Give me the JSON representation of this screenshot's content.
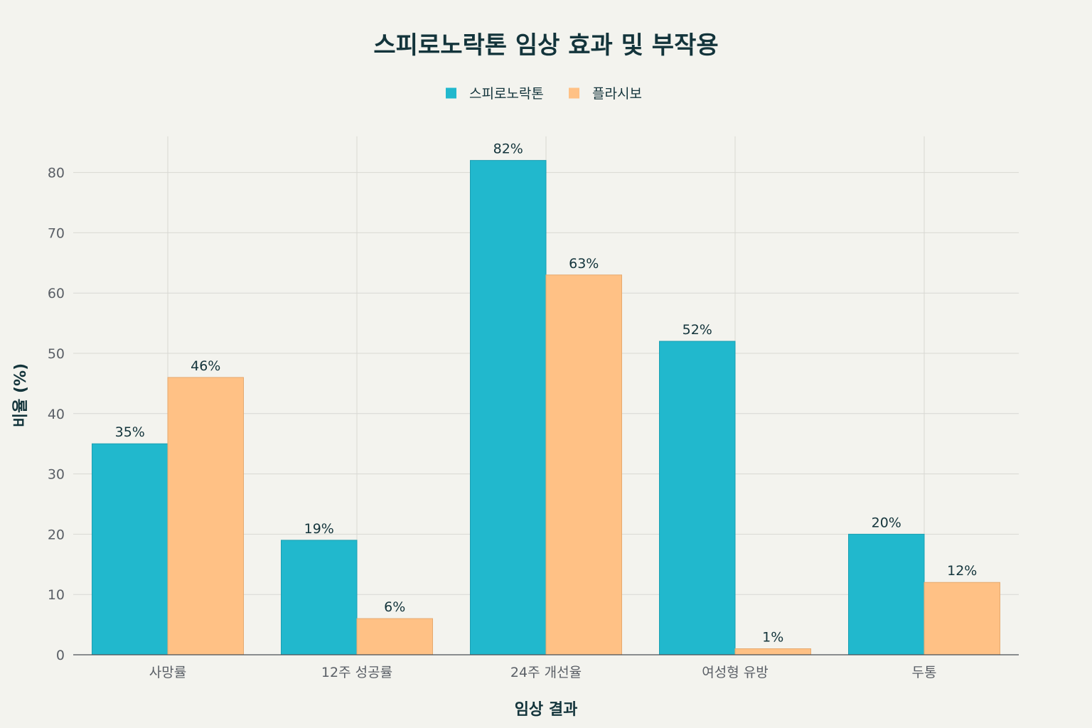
{
  "chart_data": {
    "type": "bar",
    "title": "스피로노락톤 임상 효과 및 부작용",
    "xlabel": "임상 결과",
    "ylabel": "비율 (%)",
    "categories": [
      "사망률",
      "12주 성공률",
      "24주 개선율",
      "여성형 유방",
      "두통"
    ],
    "series": [
      {
        "name": "스피로노락톤",
        "values": [
          35,
          19,
          82,
          52,
          20
        ],
        "labels": [
          "35%",
          "19%",
          "82%",
          "52%",
          "20%"
        ],
        "color": "#21b8cd"
      },
      {
        "name": "플라시보",
        "values": [
          46,
          6,
          63,
          1,
          12
        ],
        "labels": [
          "46%",
          "6%",
          "63%",
          "1%",
          "12%"
        ],
        "color": "#ffc185"
      }
    ],
    "ylim": [
      0,
      86
    ],
    "yticks": [
      0,
      10,
      20,
      30,
      40,
      50,
      60,
      70,
      80
    ],
    "grid": true,
    "legend": "top-center"
  }
}
